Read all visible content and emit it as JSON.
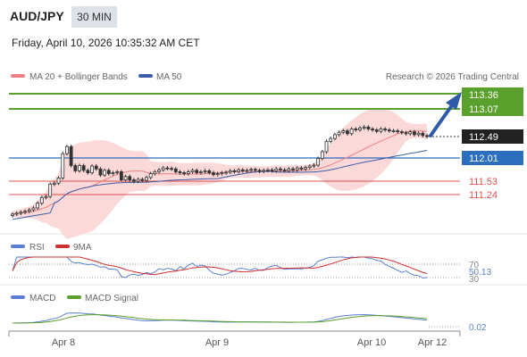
{
  "header": {
    "pair": "AUD/JPY",
    "timeframe": "30 MIN",
    "timestamp": "Friday, April 10, 2026 10:35:32 AM CET"
  },
  "legend": {
    "ma20_bb": "MA 20 + Bollinger Bands",
    "ma50": "MA 50",
    "credit": "Research © 2026 Trading Central",
    "rsi": "RSI",
    "rsi_ma": "9MA",
    "macd": "MACD",
    "macd_signal": "MACD Signal"
  },
  "colors": {
    "candle": "#333333",
    "ma20": "#f08080",
    "bollinger": "#fcd9d9",
    "ma50": "#3a5ea8",
    "resistance": "#5aa02c",
    "pivot": "#2c6fbf",
    "support": "#e05050",
    "arrow": "#2e5aa8",
    "rsi": "#5b7fd0",
    "rsi_ma": "#d03030",
    "macd": "#5b7fd0",
    "macd_signal": "#5aa02c"
  },
  "chart_data": {
    "type": "candlestick",
    "x_ticks": [
      "Apr 8",
      "Apr 9",
      "Apr 10",
      "Apr 12"
    ],
    "price_levels": [
      {
        "label": "113.36",
        "value": 113.36,
        "role": "target",
        "color": "#5aa02c"
      },
      {
        "label": "113.07",
        "value": 113.07,
        "role": "resistance",
        "color": "#5aa02c"
      },
      {
        "label": "112.49",
        "value": 112.49,
        "role": "current",
        "color": "#222222"
      },
      {
        "label": "112.01",
        "value": 112.01,
        "role": "pivot",
        "color": "#2c6fbf"
      },
      {
        "label": "111.53",
        "value": 111.53,
        "role": "support",
        "color": "#e05050"
      },
      {
        "label": "111.24",
        "value": 111.24,
        "role": "support",
        "color": "#e05050"
      }
    ],
    "close": [
      110.83,
      110.85,
      110.87,
      110.89,
      110.92,
      110.96,
      111.06,
      111.18,
      111.2,
      111.46,
      111.48,
      111.59,
      112.1,
      112.25,
      111.85,
      111.74,
      111.85,
      111.75,
      111.7,
      111.84,
      111.78,
      111.65,
      111.75,
      111.68,
      111.7,
      111.72,
      111.55,
      111.62,
      111.55,
      111.52,
      111.56,
      111.54,
      111.6,
      111.68,
      111.72,
      111.76,
      111.8,
      111.79,
      111.78,
      111.72,
      111.7,
      111.68,
      111.72,
      111.75,
      111.7,
      111.72,
      111.74,
      111.7,
      111.66,
      111.68,
      111.7,
      111.71,
      111.74,
      111.72,
      111.76,
      111.74,
      111.75,
      111.77,
      111.75,
      111.73,
      111.75,
      111.76,
      111.74,
      111.78,
      111.76,
      111.74,
      111.78,
      111.76,
      111.8,
      111.78,
      111.81,
      111.84,
      111.86,
      112.0,
      112.14,
      112.36,
      112.42,
      112.5,
      112.55,
      112.58,
      112.52,
      112.62,
      112.6,
      112.64,
      112.66,
      112.62,
      112.6,
      112.57,
      112.62,
      112.6,
      112.58,
      112.58,
      112.56,
      112.54,
      112.52,
      112.56,
      112.5,
      112.53,
      112.48,
      112.46
    ],
    "candle_count": 100,
    "rsi": {
      "value_label": "50.13",
      "levels": [
        "70",
        "30"
      ]
    },
    "macd": {
      "value_label": "0.02"
    }
  }
}
